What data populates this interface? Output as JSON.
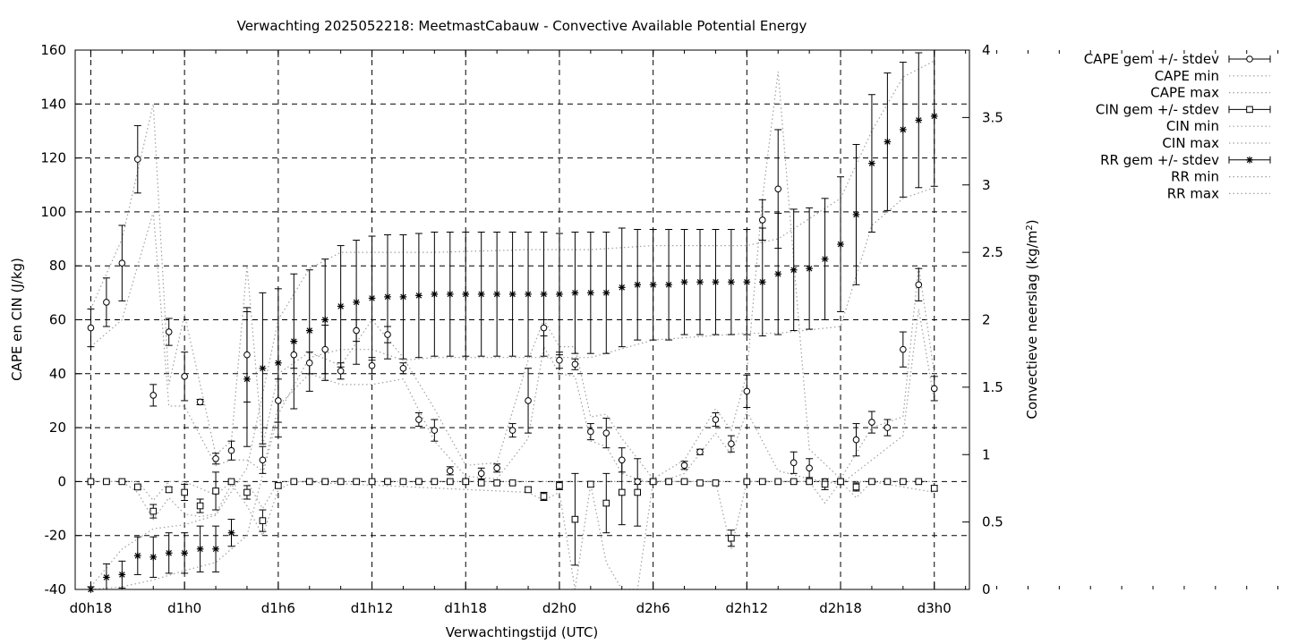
{
  "chart_data": {
    "type": "scatter",
    "title": "Verwachting 2025052218: MeetmastCabauw - Convective Available Potential Energy",
    "xlabel": "Verwachtingstijd (UTC)",
    "ylabel": "CAPE en CIN (J/kg)",
    "y2label_main": "Convectieve neerslag (kg/m",
    "y2label_sup": "2",
    "y2label_end": ")",
    "ylim": [
      -40,
      160
    ],
    "y2lim": [
      0,
      4
    ],
    "grid": true,
    "legend_position": "outside-right",
    "x_hours": [
      18,
      20,
      22,
      24,
      26,
      28,
      30,
      32,
      34,
      36,
      38,
      40,
      42,
      44,
      46,
      48,
      50,
      52,
      54,
      56,
      58,
      60,
      62,
      64,
      66,
      68,
      70,
      72,
      74,
      76,
      78,
      80,
      82,
      84,
      86,
      88,
      90,
      92,
      94,
      96,
      98,
      100,
      102,
      104,
      106,
      108,
      110,
      112,
      114,
      116,
      118,
      120,
      122,
      124,
      126,
      128,
      130,
      132,
      134,
      136,
      138,
      140,
      142,
      144
    ],
    "x_ticks": [
      {
        "hour": 18,
        "label": "d0h18"
      },
      {
        "hour": 24,
        "label": "d1h0"
      },
      {
        "hour": 30,
        "label": "d1h6"
      },
      {
        "hour": 36,
        "label": "d1h12"
      },
      {
        "hour": 42,
        "label": "d1h18"
      },
      {
        "hour": 48,
        "label": "d2h0"
      },
      {
        "hour": 54,
        "label": "d2h6"
      },
      {
        "hour": 60,
        "label": "d2h12"
      },
      {
        "hour": 66,
        "label": "d2h18"
      },
      {
        "hour": 72,
        "label": "d3h0"
      }
    ],
    "y_ticks": [
      "160",
      "140",
      "120",
      "100",
      "80",
      "60",
      "40",
      "20",
      "0",
      "-20",
      "-40"
    ],
    "y2_ticks": [
      "4",
      "3.5",
      "3",
      "2.5",
      "2",
      "1.5",
      "1",
      "0.5",
      "0"
    ],
    "series": [
      {
        "name": "CAPE gem +/- stdev",
        "axis": "y",
        "marker": "circle",
        "x": [
          18,
          19,
          20,
          21,
          22,
          23,
          24,
          25,
          26,
          27,
          28,
          29,
          30,
          31,
          32,
          33,
          34,
          35,
          36,
          37,
          38,
          39,
          40,
          41,
          42,
          43,
          44,
          45,
          46,
          47,
          48,
          49,
          50,
          51,
          52,
          53,
          54,
          55,
          56,
          57,
          58,
          59,
          60,
          61,
          62,
          63,
          64,
          65,
          66,
          67,
          68,
          69,
          70,
          71,
          72
        ],
        "y": [
          57,
          66.5,
          81,
          119.5,
          32,
          55.5,
          39,
          29.5,
          8.5,
          11.5,
          47,
          8,
          30,
          47,
          44,
          49,
          41,
          56,
          43,
          54.5,
          42,
          23,
          19,
          4,
          0,
          3,
          5,
          19,
          30,
          57,
          45,
          43.5,
          18.5,
          18,
          8,
          0,
          0,
          0,
          6,
          11,
          23,
          14,
          33.5,
          97,
          108.5,
          7,
          5,
          0,
          0,
          15.5,
          22,
          20,
          49,
          73,
          34.5
        ],
        "err": [
          7,
          9,
          14,
          12.5,
          4,
          5,
          9,
          1,
          2,
          3.5,
          17.5,
          5,
          8,
          5,
          4,
          9,
          3,
          4,
          3,
          3,
          2,
          2.5,
          4,
          1.5,
          1,
          2,
          1.5,
          2.5,
          12,
          3,
          3,
          2,
          3,
          5.5,
          4.5,
          1,
          1,
          1,
          1.5,
          1,
          2.5,
          3,
          6,
          7.5,
          22,
          4,
          3.5,
          1,
          1,
          6,
          4,
          3,
          6.5,
          6,
          4.5
        ]
      },
      {
        "name": "CAPE min",
        "axis": "y",
        "style": "dotted",
        "x": [
          18,
          20,
          22,
          23,
          24,
          26,
          27,
          28,
          29,
          30,
          32,
          34,
          36,
          38,
          40,
          42,
          44,
          46,
          47,
          48,
          49,
          50,
          51,
          52,
          54,
          56,
          58,
          59,
          60,
          62,
          64,
          66,
          68,
          70,
          71,
          72
        ],
        "y": [
          50,
          60,
          100,
          28,
          28,
          6,
          8,
          8,
          4,
          28,
          40,
          36,
          36,
          38,
          15,
          2,
          1,
          16,
          50,
          40,
          39,
          15,
          13,
          3,
          -1,
          3,
          18,
          10,
          26,
          4,
          1,
          -1,
          8,
          17,
          64,
          30
        ]
      },
      {
        "name": "CAPE max",
        "axis": "y",
        "style": "dotted",
        "x": [
          18,
          20,
          22,
          23,
          24,
          26,
          27,
          28,
          29,
          30,
          32,
          34,
          36,
          38,
          40,
          42,
          44,
          46,
          47,
          48,
          49,
          50,
          51,
          52,
          54,
          56,
          58,
          59,
          60,
          61,
          62,
          64,
          66,
          68,
          70,
          71,
          72
        ],
        "y": [
          64,
          90,
          140,
          36,
          62,
          10,
          15,
          80,
          13,
          40,
          48,
          43,
          60,
          46,
          27,
          6,
          7,
          45,
          60,
          50,
          50,
          24,
          25,
          16,
          1,
          8,
          27,
          19,
          40,
          105,
          152,
          12,
          1,
          20,
          24,
          80,
          40
        ]
      },
      {
        "name": "CIN gem +/- stdev",
        "axis": "y",
        "marker": "square",
        "x": [
          18,
          19,
          20,
          21,
          22,
          23,
          24,
          25,
          26,
          27,
          28,
          29,
          30,
          31,
          32,
          33,
          34,
          35,
          36,
          37,
          38,
          39,
          40,
          41,
          42,
          43,
          44,
          45,
          46,
          47,
          48,
          49,
          50,
          51,
          52,
          53,
          54,
          55,
          56,
          57,
          58,
          59,
          60,
          61,
          62,
          63,
          64,
          65,
          66,
          67,
          68,
          69,
          70,
          71,
          72
        ],
        "y": [
          0,
          0,
          0,
          -2,
          -11,
          -3,
          -4,
          -9,
          -3.5,
          0,
          -4,
          -14.5,
          -1.5,
          0,
          0,
          0,
          0,
          0,
          0,
          0,
          0,
          0,
          0,
          0,
          0,
          -0.5,
          -0.5,
          -0.5,
          -3,
          -5.5,
          -1.5,
          -14,
          -1,
          -8,
          -4,
          -4,
          0,
          0,
          0,
          -0.5,
          -0.5,
          -21,
          0,
          0,
          0,
          0,
          0,
          -1,
          0,
          -2,
          0,
          0,
          0,
          0,
          -2.5
        ],
        "err": [
          0.3,
          0.3,
          0.3,
          0.8,
          2.5,
          1,
          3,
          2.5,
          7,
          0.5,
          2.5,
          4,
          1,
          0.3,
          0.3,
          0.3,
          0.3,
          0.3,
          0.3,
          0.3,
          0.3,
          0.3,
          0.3,
          0.3,
          0.3,
          0.5,
          0.5,
          0.5,
          1,
          1.5,
          1.5,
          17,
          1,
          11,
          12,
          12.5,
          0.5,
          0.5,
          0.5,
          0.5,
          0.5,
          3,
          0.3,
          0.3,
          0.3,
          0.3,
          0.5,
          2,
          0.3,
          1.5,
          0.3,
          0.3,
          0.3,
          0.3,
          1
        ]
      },
      {
        "name": "CIN min",
        "axis": "y",
        "style": "dotted",
        "x": [
          18,
          20,
          21,
          22,
          23,
          24,
          25,
          26,
          27,
          28,
          29,
          30,
          31,
          46,
          47,
          48,
          49,
          50,
          51,
          52,
          53,
          54,
          58,
          59,
          60,
          63,
          64,
          65,
          66,
          67,
          68,
          72
        ],
        "y": [
          0,
          0,
          -4,
          -14,
          -6,
          -12,
          -13,
          -12,
          -1,
          -9,
          -20,
          -3,
          0,
          -4,
          -7,
          -4,
          -40,
          -1,
          -30,
          -40,
          -40,
          0,
          0,
          -25,
          0,
          0,
          0,
          -8,
          0,
          -6,
          0,
          -4
        ]
      },
      {
        "name": "CIN max",
        "axis": "y",
        "style": "dotted",
        "x": [
          18,
          21,
          22,
          23,
          24,
          26,
          27,
          28,
          29,
          30,
          31,
          72
        ],
        "y": [
          0,
          0,
          -7,
          0,
          0,
          -5,
          0,
          0,
          -10,
          0,
          0,
          0
        ]
      },
      {
        "name": "RR gem +/- stdev",
        "axis": "y2",
        "marker": "star",
        "x": [
          18,
          19,
          20,
          21,
          22,
          23,
          24,
          25,
          26,
          27,
          28,
          29,
          30,
          31,
          32,
          33,
          34,
          35,
          36,
          37,
          38,
          39,
          40,
          41,
          42,
          43,
          44,
          45,
          46,
          47,
          48,
          49,
          50,
          51,
          52,
          53,
          54,
          55,
          56,
          57,
          58,
          59,
          60,
          61,
          62,
          63,
          64,
          65,
          66,
          67,
          68,
          69,
          70,
          71,
          72
        ],
        "y": [
          0,
          0.09,
          0.11,
          0.25,
          0.24,
          0.27,
          0.27,
          0.3,
          0.3,
          0.42,
          1.56,
          1.64,
          1.68,
          1.84,
          1.92,
          2.0,
          2.1,
          2.13,
          2.16,
          2.17,
          2.17,
          2.18,
          2.19,
          2.19,
          2.19,
          2.19,
          2.19,
          2.19,
          2.19,
          2.19,
          2.19,
          2.2,
          2.2,
          2.2,
          2.24,
          2.26,
          2.26,
          2.26,
          2.28,
          2.28,
          2.28,
          2.28,
          2.28,
          2.28,
          2.34,
          2.37,
          2.38,
          2.45,
          2.56,
          2.78,
          3.16,
          3.32,
          3.41,
          3.48,
          3.51
        ],
        "err": [
          0.02,
          0.1,
          0.1,
          0.14,
          0.15,
          0.15,
          0.15,
          0.17,
          0.17,
          0.1,
          0.5,
          0.56,
          0.55,
          0.5,
          0.45,
          0.45,
          0.45,
          0.46,
          0.46,
          0.46,
          0.46,
          0.46,
          0.46,
          0.46,
          0.46,
          0.46,
          0.46,
          0.46,
          0.46,
          0.46,
          0.45,
          0.45,
          0.45,
          0.45,
          0.44,
          0.41,
          0.41,
          0.41,
          0.39,
          0.39,
          0.39,
          0.39,
          0.39,
          0.4,
          0.45,
          0.45,
          0.45,
          0.45,
          0.5,
          0.52,
          0.51,
          0.51,
          0.5,
          0.5,
          0.52
        ]
      },
      {
        "name": "RR min",
        "axis": "y2",
        "style": "dotted",
        "x": [
          18,
          20,
          22,
          24,
          26,
          28,
          30,
          32,
          34,
          36,
          38,
          40,
          46,
          48,
          50,
          54,
          60,
          62,
          66,
          68,
          70,
          72
        ],
        "y": [
          0,
          0.02,
          0.07,
          0.14,
          0.2,
          0.4,
          1.3,
          1.72,
          1.78,
          1.78,
          1.7,
          1.72,
          1.72,
          1.72,
          1.72,
          1.85,
          1.9,
          1.9,
          1.95,
          2.7,
          2.9,
          2.98
        ]
      },
      {
        "name": "RR max",
        "axis": "y2",
        "style": "dotted",
        "x": [
          18,
          20,
          22,
          24,
          26,
          28,
          30,
          32,
          34,
          36,
          38,
          40,
          46,
          48,
          50,
          54,
          58,
          60,
          62,
          66,
          68,
          70,
          72
        ],
        "y": [
          0.02,
          0.3,
          0.45,
          0.48,
          0.55,
          0.9,
          2.0,
          2.38,
          2.5,
          2.5,
          2.5,
          2.5,
          2.52,
          2.52,
          2.52,
          2.55,
          2.55,
          2.55,
          2.6,
          2.9,
          3.4,
          3.8,
          3.92
        ]
      }
    ]
  }
}
